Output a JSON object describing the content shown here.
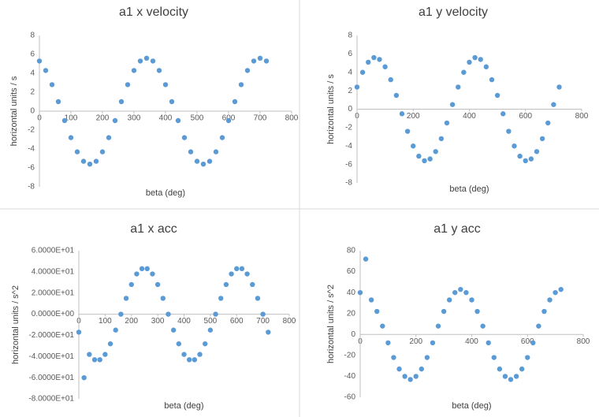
{
  "chart_data": [
    {
      "type": "scatter",
      "title": "a1 x velocity",
      "xlabel": "beta (deg)",
      "ylabel": "horizontal units / s",
      "color": "#5b9bd5",
      "grid": false,
      "x": [
        0,
        20,
        40,
        60,
        80,
        100,
        120,
        140,
        160,
        180,
        200,
        220,
        240,
        260,
        280,
        300,
        320,
        340,
        360,
        380,
        400,
        420,
        440,
        460,
        480,
        500,
        520,
        540,
        560,
        580,
        600,
        620,
        640,
        660,
        680,
        700,
        720
      ],
      "values": [
        5.3,
        4.3,
        2.8,
        1.0,
        -1.0,
        -2.8,
        -4.3,
        -5.3,
        -5.6,
        -5.3,
        -4.3,
        -2.8,
        -1.0,
        1.0,
        2.8,
        4.3,
        5.3,
        5.6,
        5.3,
        4.3,
        2.8,
        1.0,
        -1.0,
        -2.8,
        -4.3,
        -5.3,
        -5.6,
        -5.3,
        -4.3,
        -2.8,
        -1.0,
        1.0,
        2.8,
        4.3,
        5.3,
        5.6,
        5.3
      ],
      "xlim": [
        0,
        800
      ],
      "xticks": [
        0,
        100,
        200,
        300,
        400,
        500,
        600,
        700,
        800
      ],
      "ylim": [
        -8,
        8
      ],
      "yticks": [
        -8,
        -6,
        -4,
        -2,
        0,
        2,
        4,
        6,
        8
      ]
    },
    {
      "type": "scatter",
      "title": "a1 y velocity",
      "xlabel": "beta (deg)",
      "ylabel": "horizontal units / s",
      "color": "#5b9bd5",
      "grid": false,
      "x": [
        0,
        20,
        40,
        60,
        80,
        100,
        120,
        140,
        160,
        180,
        200,
        220,
        240,
        260,
        280,
        300,
        320,
        340,
        360,
        380,
        400,
        420,
        440,
        460,
        480,
        500,
        520,
        540,
        560,
        580,
        600,
        620,
        640,
        660,
        680,
        700,
        720
      ],
      "values": [
        2.4,
        4.0,
        5.1,
        5.6,
        5.4,
        4.6,
        3.2,
        1.5,
        -0.5,
        -2.4,
        -4.0,
        -5.1,
        -5.6,
        -5.4,
        -4.6,
        -3.2,
        -1.5,
        0.5,
        2.4,
        4.0,
        5.1,
        5.6,
        5.4,
        4.6,
        3.2,
        1.5,
        -0.5,
        -2.4,
        -4.0,
        -5.1,
        -5.6,
        -5.4,
        -4.6,
        -3.2,
        -1.5,
        0.5,
        2.4
      ],
      "xlim": [
        0,
        800
      ],
      "xticks": [
        0,
        200,
        400,
        600,
        800
      ],
      "ylim": [
        -8,
        8
      ],
      "yticks": [
        -8,
        -6,
        -4,
        -2,
        0,
        2,
        4,
        6,
        8
      ]
    },
    {
      "type": "scatter",
      "title": "a1 x acc",
      "xlabel": "beta (deg)",
      "ylabel": "horizontal units / s^2",
      "color": "#5b9bd5",
      "grid": false,
      "x": [
        0,
        20,
        40,
        60,
        80,
        100,
        120,
        140,
        160,
        180,
        200,
        220,
        240,
        260,
        280,
        300,
        320,
        340,
        360,
        380,
        400,
        420,
        440,
        460,
        480,
        500,
        520,
        540,
        560,
        580,
        600,
        620,
        640,
        660,
        680,
        700,
        720
      ],
      "values": [
        -17,
        -60,
        -38,
        -43,
        -43,
        -38,
        -28,
        -15,
        0,
        15,
        28,
        38,
        43,
        43,
        38,
        28,
        15,
        0,
        -15,
        -28,
        -38,
        -43,
        -43,
        -38,
        -28,
        -15,
        0,
        15,
        28,
        38,
        43,
        43,
        38,
        28,
        15,
        0,
        -17
      ],
      "xlim": [
        0,
        800
      ],
      "xticks": [
        0,
        100,
        200,
        300,
        400,
        500,
        600,
        700,
        800
      ],
      "ylim": [
        -80,
        60
      ],
      "yticks": [
        {
          "value": -80,
          "label": "-8.0000E+01"
        },
        {
          "value": -60,
          "label": "-6.0000E+01"
        },
        {
          "value": -40,
          "label": "-4.0000E+01"
        },
        {
          "value": -20,
          "label": "-2.0000E+01"
        },
        {
          "value": 0,
          "label": "0.0000E+00"
        },
        {
          "value": 20,
          "label": "2.0000E+01"
        },
        {
          "value": 40,
          "label": "4.0000E+01"
        },
        {
          "value": 60,
          "label": "6.0000E+01"
        }
      ]
    },
    {
      "type": "scatter",
      "title": "a1 y acc",
      "xlabel": "beta (deg)",
      "ylabel": "horizontal units / s^2",
      "color": "#5b9bd5",
      "grid": false,
      "x": [
        0,
        20,
        40,
        60,
        80,
        100,
        120,
        140,
        160,
        180,
        200,
        220,
        240,
        260,
        280,
        300,
        320,
        340,
        360,
        380,
        400,
        420,
        440,
        460,
        480,
        500,
        520,
        540,
        560,
        580,
        600,
        620,
        640,
        660,
        680,
        700,
        720
      ],
      "values": [
        40,
        72,
        33,
        22,
        8,
        -8,
        -22,
        -33,
        -40,
        -43,
        -40,
        -33,
        -22,
        -8,
        8,
        22,
        33,
        40,
        43,
        40,
        33,
        22,
        8,
        -8,
        -22,
        -33,
        -40,
        -43,
        -40,
        -33,
        -22,
        -8,
        8,
        22,
        33,
        40,
        43
      ],
      "xlim": [
        0,
        800
      ],
      "xticks": [
        0,
        200,
        400,
        600,
        800
      ],
      "ylim": [
        -60,
        80
      ],
      "yticks": [
        -60,
        -40,
        -20,
        0,
        20,
        40,
        60,
        80
      ]
    }
  ]
}
